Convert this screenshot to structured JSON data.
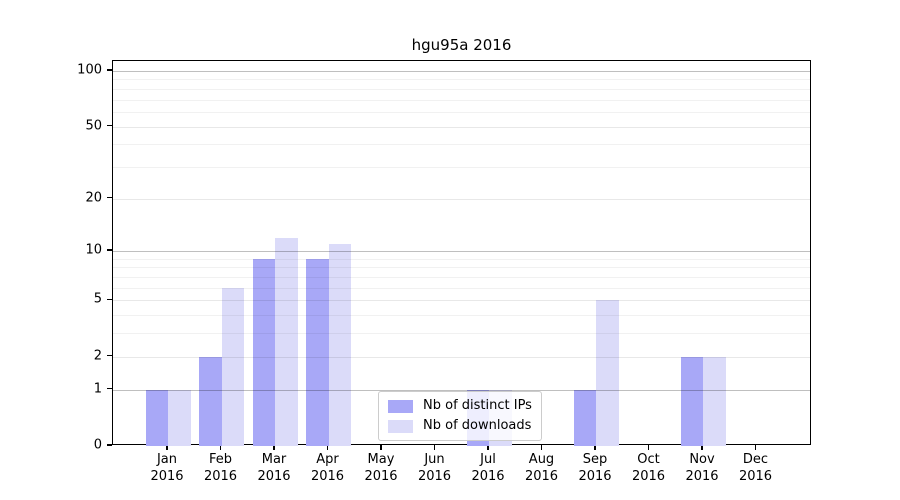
{
  "chart_data": {
    "type": "bar",
    "title": "hgu95a 2016",
    "x_categories": [
      "Jan",
      "Feb",
      "Mar",
      "Apr",
      "May",
      "Jun",
      "Jul",
      "Aug",
      "Sep",
      "Oct",
      "Nov",
      "Dec"
    ],
    "x_sublabel": "2016",
    "series": [
      {
        "name": "Nb of distinct IPs",
        "color": "#a8a8f7",
        "values": [
          1,
          2,
          9,
          9,
          0,
          0,
          1,
          0,
          1,
          0,
          2,
          0
        ]
      },
      {
        "name": "Nb of downloads",
        "color": "#dbdbf9",
        "values": [
          1,
          6,
          12,
          11,
          0,
          0,
          1,
          0,
          5,
          0,
          2,
          0
        ]
      }
    ],
    "y_scale": "log10(value+1)",
    "y_ticks": [
      0,
      1,
      2,
      5,
      10,
      20,
      50,
      100
    ],
    "y_major_gridlines": [
      1,
      10,
      100
    ],
    "y_mid_gridlines": [
      2,
      5,
      20,
      50
    ],
    "y_minor_gridlines": [
      3,
      4,
      6,
      7,
      8,
      9,
      30,
      40,
      60,
      70,
      80,
      90
    ],
    "ylim": [
      0,
      112
    ],
    "grid": "horizontal",
    "legend_position": "lower-center"
  }
}
